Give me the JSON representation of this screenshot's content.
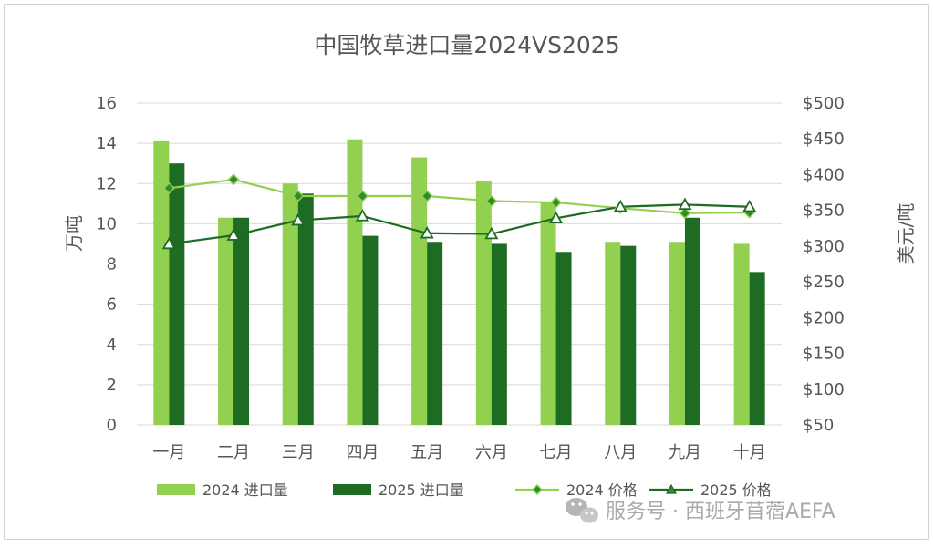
{
  "chart_data": {
    "type": "bar",
    "title": "中国牧草进口量2024VS2025",
    "categories": [
      "一月",
      "二月",
      "三月",
      "四月",
      "五月",
      "六月",
      "七月",
      "八月",
      "九月",
      "十月"
    ],
    "ylabel": "万吨",
    "y2label": "美元/吨",
    "ylim": [
      0,
      16
    ],
    "yticks": [
      "0",
      "2",
      "4",
      "6",
      "8",
      "10",
      "12",
      "14",
      "16"
    ],
    "y2lim": [
      50,
      500
    ],
    "y2ticks": [
      "$50",
      "$100",
      "$150",
      "$200",
      "$250",
      "$300",
      "$350",
      "$400",
      "$450",
      "$500"
    ],
    "grid": true,
    "legend_position": "bottom",
    "series": [
      {
        "name": "2024 进口量",
        "kind": "bar",
        "axis": "left",
        "color": "#92d050",
        "values": [
          14.1,
          10.3,
          12.0,
          14.2,
          13.3,
          12.1,
          11.1,
          9.1,
          9.1,
          9.0
        ]
      },
      {
        "name": "2025 进口量",
        "kind": "bar",
        "axis": "left",
        "color": "#1e6b23",
        "values": [
          13.0,
          10.3,
          11.5,
          9.4,
          9.1,
          9.0,
          8.6,
          8.9,
          10.3,
          7.6
        ]
      },
      {
        "name": "2024 价格",
        "kind": "line",
        "axis": "right",
        "color": "#92d050",
        "marker": "diamond",
        "values": [
          381,
          393,
          370,
          370,
          370,
          363,
          361,
          353,
          346,
          347
        ]
      },
      {
        "name": "2025 价格",
        "kind": "line",
        "axis": "right",
        "color": "#1e6b23",
        "marker": "triangle",
        "values": [
          303,
          315,
          336,
          342,
          318,
          317,
          339,
          355,
          358,
          355
        ]
      }
    ]
  },
  "watermark": {
    "icon": "wechat-icon",
    "text": "服务号 · 西班牙苜蓿AEFA"
  }
}
